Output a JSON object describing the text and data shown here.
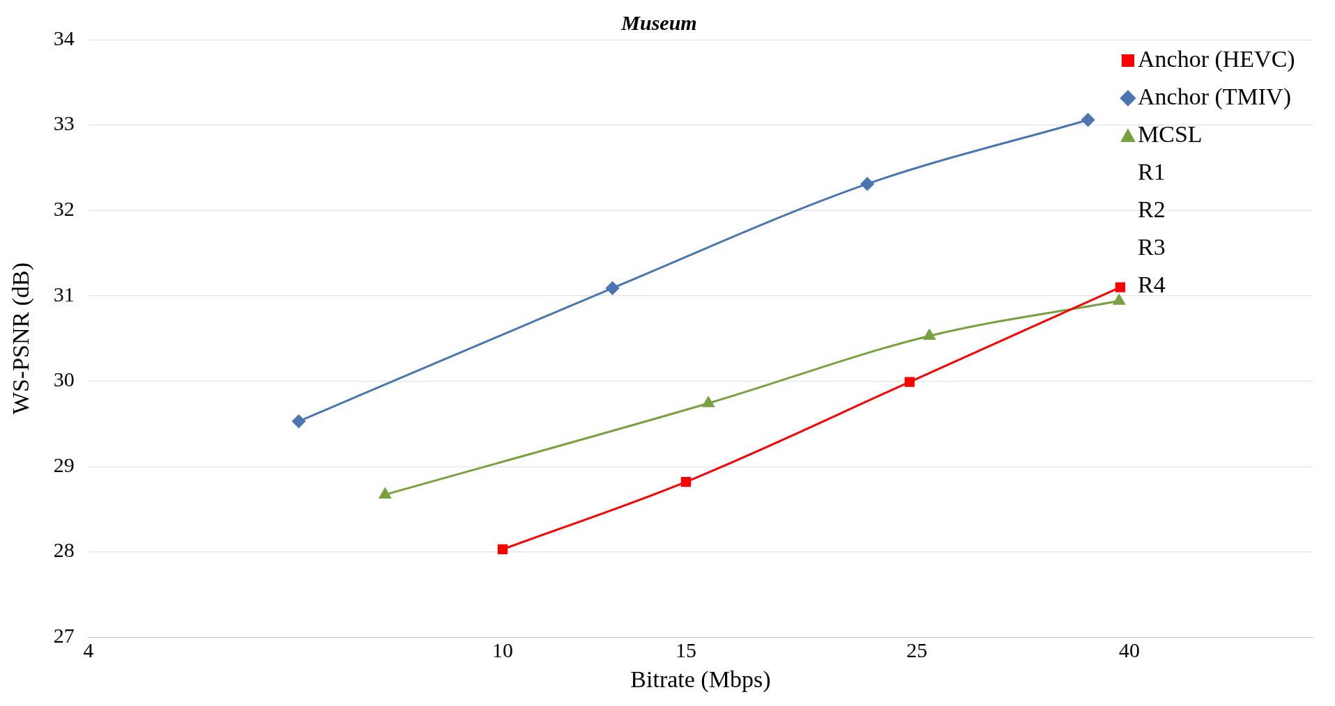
{
  "chart_data": {
    "type": "line",
    "title": "Museum",
    "xlabel": "Bitrate (Mbps)",
    "ylabel": "WS-PSNR (dB)",
    "log": "x",
    "xlim": [
      4,
      60
    ],
    "xticks": [
      4,
      10,
      15,
      25,
      40
    ],
    "ylim": [
      27,
      34
    ],
    "yticks": [
      27,
      28,
      29,
      30,
      31,
      32,
      33,
      34
    ],
    "grid": "y",
    "legend": "top right",
    "line_style": "solid",
    "series": [
      {
        "name": "Anchor (HEVC)",
        "color": "#ff0000",
        "marker": "square",
        "x": [
          10,
          15,
          24.6,
          39.2
        ],
        "values": [
          28.03,
          28.82,
          29.99,
          31.1
        ]
      },
      {
        "name": "Anchor (TMIV)",
        "color": "#4a76b0",
        "marker": "diamond",
        "x": [
          6.37,
          12.75,
          22.4,
          36.5
        ],
        "values": [
          29.53,
          31.09,
          32.31,
          33.06
        ]
      },
      {
        "name": "MCSL",
        "color": "#79a03f",
        "marker": "triangle",
        "x": [
          7.71,
          15.76,
          25.7,
          39.1
        ],
        "values": [
          28.67,
          29.74,
          30.53,
          30.94
        ]
      }
    ],
    "annotations": [
      "R1",
      "R2",
      "R3",
      "R4"
    ]
  }
}
